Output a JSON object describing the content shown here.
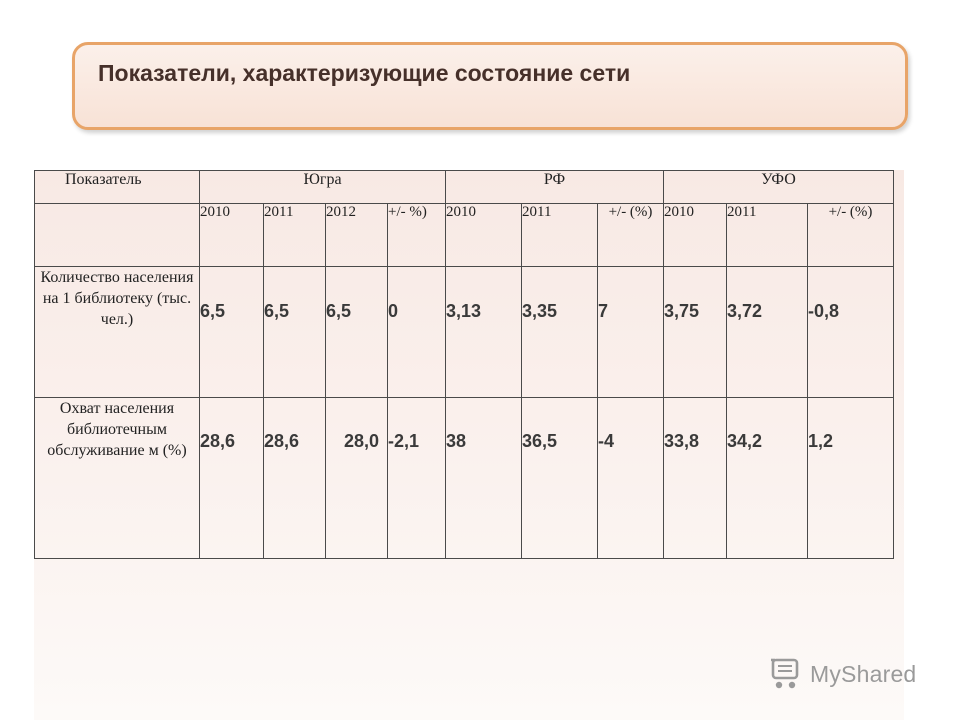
{
  "title": "Показатели, характеризующие состояние сети",
  "table": {
    "header": {
      "indicator": "Показатель",
      "groups": [
        "Югра",
        "РФ",
        "УФО"
      ]
    },
    "years": {
      "ugra": [
        "2010",
        "2011",
        "2012",
        "+/- %)"
      ],
      "rf": [
        "2010",
        "2011",
        "+/- (%)"
      ],
      "ufo": [
        "2010",
        "2011",
        "+/- (%)"
      ]
    },
    "rows": [
      {
        "label": "Количество населения на 1 библиотеку (тыс. чел.)",
        "values": [
          "6,5",
          "6,5",
          "6,5",
          "0",
          "3,13",
          "3,35",
          "7",
          "3,75",
          "3,72",
          "-0,8"
        ]
      },
      {
        "label": "Охват населения библиотечным обслуживание м (%)",
        "values": [
          "28,6",
          "28,6",
          "28,0",
          "-2,1",
          "38",
          "36,5",
          "-4",
          "33,8",
          "34,2",
          "1,2"
        ]
      }
    ]
  },
  "watermark": {
    "text": "MyShared",
    "icon": "mouse-cart-icon"
  }
}
